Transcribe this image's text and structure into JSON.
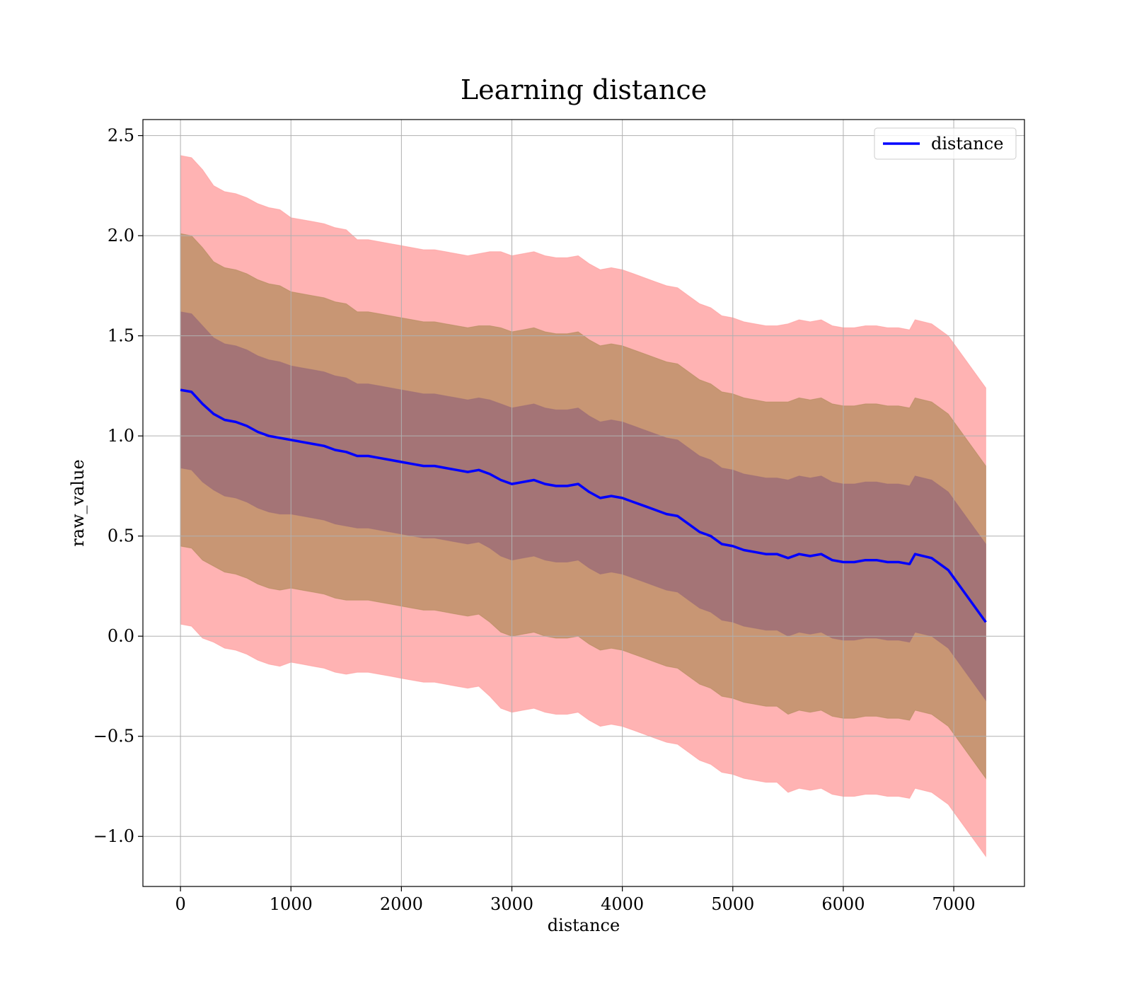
{
  "chart_data": {
    "type": "line",
    "title": "Learning distance",
    "xlabel": "distance",
    "ylabel": "raw_value",
    "xlim": [
      -340,
      7640
    ],
    "ylim": [
      -1.25,
      2.58
    ],
    "xticks": [
      0,
      1000,
      2000,
      3000,
      4000,
      5000,
      6000,
      7000
    ],
    "xtick_labels": [
      "0",
      "1000",
      "2000",
      "3000",
      "4000",
      "5000",
      "6000",
      "7000"
    ],
    "yticks": [
      -1.0,
      -0.5,
      0.0,
      0.5,
      1.0,
      1.5,
      2.0,
      2.5
    ],
    "ytick_labels": [
      "−1.0",
      "−0.5",
      "0.0",
      "0.5",
      "1.0",
      "1.5",
      "2.0",
      "2.5"
    ],
    "grid": true,
    "legend_position": "top-right",
    "colors": {
      "line": "#0000ff",
      "band_3sd": "#ff9999",
      "band_2sd": "#b08a5a",
      "band_1sd": "#9e6e77",
      "grid": "#b0b0b0"
    },
    "series": [
      {
        "name": "distance",
        "x": [
          0,
          100,
          200,
          300,
          400,
          500,
          600,
          700,
          800,
          900,
          1000,
          1100,
          1200,
          1300,
          1400,
          1500,
          1600,
          1700,
          1800,
          1900,
          2000,
          2100,
          2200,
          2300,
          2400,
          2500,
          2600,
          2700,
          2800,
          2900,
          3000,
          3100,
          3200,
          3300,
          3400,
          3500,
          3600,
          3700,
          3800,
          3900,
          4000,
          4100,
          4200,
          4300,
          4400,
          4500,
          4600,
          4700,
          4800,
          4900,
          5000,
          5100,
          5200,
          5300,
          5400,
          5500,
          5600,
          5700,
          5800,
          5900,
          6000,
          6100,
          6200,
          6300,
          6400,
          6500,
          6600,
          6650,
          6800,
          6950,
          7290
        ],
        "y": [
          1.23,
          1.22,
          1.16,
          1.11,
          1.08,
          1.07,
          1.05,
          1.02,
          1.0,
          0.99,
          0.98,
          0.97,
          0.96,
          0.95,
          0.93,
          0.92,
          0.9,
          0.9,
          0.89,
          0.88,
          0.87,
          0.86,
          0.85,
          0.85,
          0.84,
          0.83,
          0.82,
          0.83,
          0.81,
          0.78,
          0.76,
          0.77,
          0.78,
          0.76,
          0.75,
          0.75,
          0.76,
          0.72,
          0.69,
          0.7,
          0.69,
          0.67,
          0.65,
          0.63,
          0.61,
          0.6,
          0.56,
          0.52,
          0.5,
          0.46,
          0.45,
          0.43,
          0.42,
          0.41,
          0.41,
          0.39,
          0.41,
          0.4,
          0.41,
          0.38,
          0.37,
          0.37,
          0.38,
          0.38,
          0.37,
          0.37,
          0.36,
          0.41,
          0.39,
          0.33,
          0.07
        ],
        "std": [
          0.39,
          0.39,
          0.39,
          0.38,
          0.38,
          0.38,
          0.38,
          0.38,
          0.38,
          0.38,
          0.37,
          0.37,
          0.37,
          0.37,
          0.37,
          0.37,
          0.36,
          0.36,
          0.36,
          0.36,
          0.36,
          0.36,
          0.36,
          0.36,
          0.36,
          0.36,
          0.36,
          0.36,
          0.37,
          0.38,
          0.38,
          0.38,
          0.38,
          0.38,
          0.38,
          0.38,
          0.38,
          0.38,
          0.38,
          0.38,
          0.38,
          0.38,
          0.38,
          0.38,
          0.38,
          0.38,
          0.38,
          0.38,
          0.38,
          0.38,
          0.38,
          0.38,
          0.38,
          0.38,
          0.38,
          0.39,
          0.39,
          0.39,
          0.39,
          0.39,
          0.39,
          0.39,
          0.39,
          0.39,
          0.39,
          0.39,
          0.39,
          0.39,
          0.39,
          0.39,
          0.39
        ]
      }
    ]
  }
}
